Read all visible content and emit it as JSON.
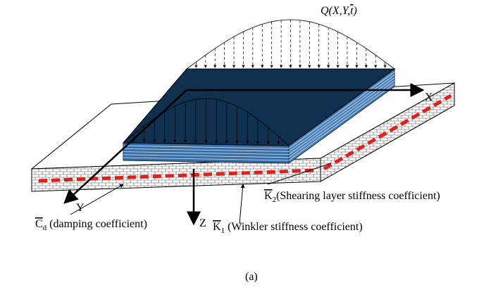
{
  "load_label": {
    "prefix": "Q(X,Y,",
    "overlined": "t",
    "suffix": ")"
  },
  "axes": {
    "x": "X",
    "y": "Y",
    "z": "Z"
  },
  "shearing_label": {
    "symbol": "K",
    "subscript": "2",
    "description": "(Shearing layer stiffness coefficient)"
  },
  "damping_label": {
    "symbol": "C",
    "subscript": "d",
    "description": " (damping coefficient)"
  },
  "winkler_label": {
    "symbol": "K",
    "subscript": "1",
    "description": " (Winkler stiffness coefficient)"
  },
  "caption": "(a)"
}
